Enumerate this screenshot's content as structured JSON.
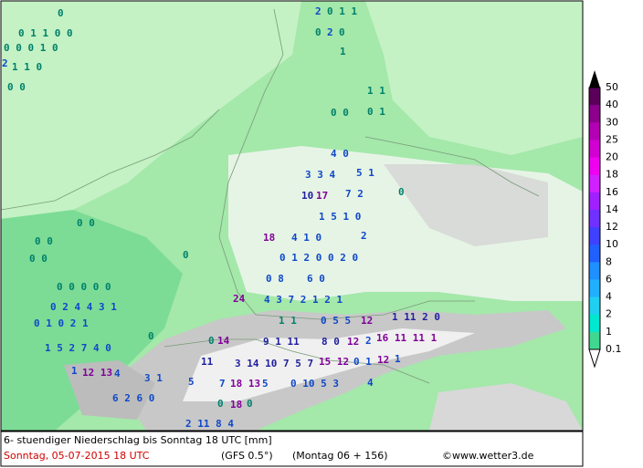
{
  "map": {
    "labels": [
      "0",
      "0 1 1 0 0",
      "0 0 0 1 0",
      "2",
      "1 1 0",
      "0 0",
      "2",
      "0 1 1",
      "0",
      "2",
      "0",
      "1",
      "1 1",
      "0 0",
      "0 1",
      "4 0",
      "3 3 4",
      "5 1",
      "10",
      "17",
      "7 2",
      "0",
      "1 5 1 0",
      "0 0",
      "18",
      "4 1 0",
      "2",
      "0 0",
      "0",
      "0 0",
      "0 1 2 0 0 2 0",
      "0 0 0 0 0",
      "0 8",
      "6 0",
      "0 2 4 4 3 1",
      "24",
      "4 3 7 2 1 2 1",
      "0 1 0 2 1",
      "1 1",
      "0 5 5",
      "12",
      "1 11 2 0",
      "0",
      "1 5 2 7 4 0",
      "0",
      "14",
      "9 1 11",
      "8 0",
      "12",
      "2",
      "16 11 11 1",
      "1",
      "12 13",
      "4",
      "3 1",
      "11",
      "3 14 10 7 5 7",
      "15 12",
      "0 1",
      "12",
      "1",
      "5",
      "7",
      "18 13",
      "5",
      "0 10 5 3",
      "4",
      "6 2 6 0",
      "0",
      "18",
      "0",
      "2 11 8 4"
    ]
  },
  "legend": {
    "values": [
      50,
      40,
      30,
      25,
      20,
      18,
      16,
      14,
      12,
      10,
      8,
      6,
      4,
      2,
      1,
      0.1
    ],
    "colors": [
      "#5a005a",
      "#8c008c",
      "#b400b4",
      "#d200d2",
      "#f000f0",
      "#d020ff",
      "#a020ff",
      "#7030ff",
      "#4040ff",
      "#2060ff",
      "#1e90ff",
      "#20b0ff",
      "#20d0f0",
      "#00e8d0",
      "#40d890"
    ]
  },
  "footer": {
    "line1": "6- stuendiger Niederschlag bis Sonntag 18 UTC [mm]",
    "date": "Sonntag, 05-07-2015  18 UTC",
    "model": "(GFS 0.5°)",
    "run": "(Montag 06 + 156)",
    "credit": "©www.wetter3.de"
  }
}
